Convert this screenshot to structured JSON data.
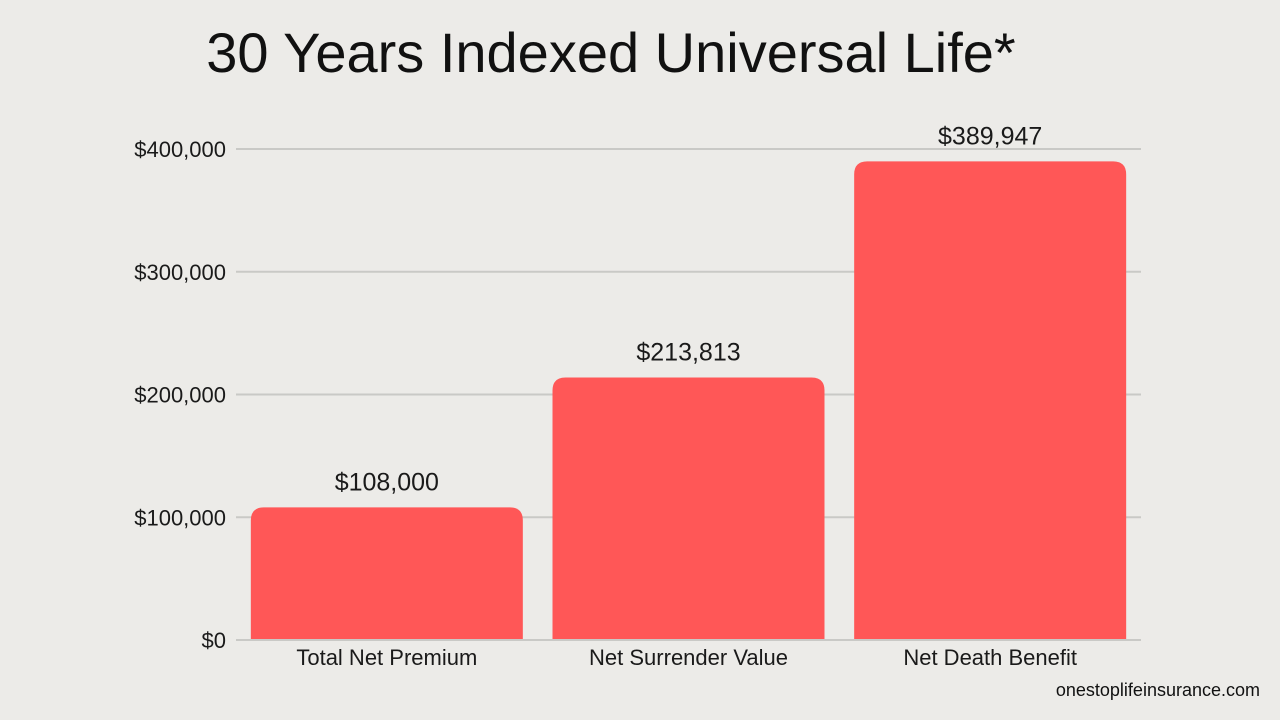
{
  "colors": {
    "background": "#ecebe8",
    "bar": "#ff5757",
    "grid": "#c9c9c6",
    "text": "#1a1a1a"
  },
  "footer": {
    "credit": "onestoplifeinsurance.com"
  },
  "chart_data": {
    "type": "bar",
    "title": "30 Years Indexed Universal Life*",
    "xlabel": "",
    "ylabel": "",
    "categories": [
      "Total Net Premium",
      "Net Surrender Value",
      "Net Death Benefit"
    ],
    "values": [
      108000,
      213813,
      389947
    ],
    "value_labels": [
      "$108,000",
      "$213,813",
      "$389,947"
    ],
    "ylim": [
      0,
      400000
    ],
    "yticks": [
      0,
      100000,
      200000,
      300000,
      400000
    ],
    "ytick_labels": [
      "$0",
      "$100,000",
      "$200,000",
      "$300,000",
      "$400,000"
    ],
    "grid": true,
    "legend": "none"
  }
}
